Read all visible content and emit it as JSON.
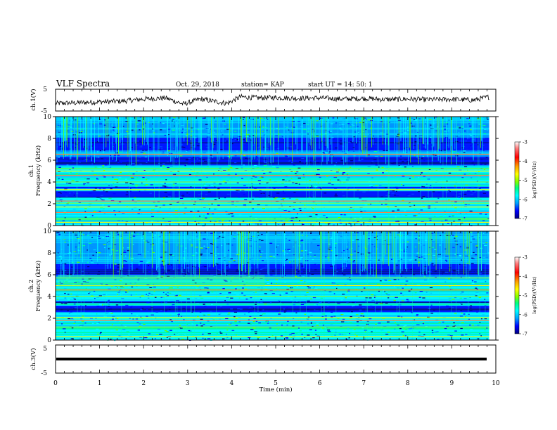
{
  "header": {
    "title": "VLF Spectra",
    "date": "Oct. 29, 2018",
    "station": "station= KAP",
    "start": "start  UT =   14: 50: 1"
  },
  "colors": {
    "waveform": "#000000",
    "colormap": [
      "#00008f",
      "#0000ff",
      "#00a0ff",
      "#00ffff",
      "#00ff80",
      "#80ff00",
      "#ffff00",
      "#ff8000",
      "#ff0000",
      "#ffffff"
    ]
  },
  "chart_data": [
    {
      "type": "line",
      "panel": "ch1-waveform",
      "ylabel": "ch.1(V)",
      "ylim": [
        -5,
        5
      ],
      "yticks": [
        "5",
        "-5"
      ],
      "x_range": [
        0,
        9.85
      ],
      "description_values": {
        "x": [
          0,
          0.5,
          1.0,
          1.5,
          2.0,
          2.5,
          2.9,
          3.3,
          3.6,
          3.9,
          4.2,
          4.6,
          5.0,
          5.5,
          6.0,
          6.5,
          7.0,
          7.5,
          8.0,
          8.5,
          9.0,
          9.5,
          9.85
        ],
        "y": [
          -1.5,
          -1.2,
          -0.8,
          -0.5,
          0.5,
          1.0,
          -1.8,
          0.5,
          -0.5,
          -1.5,
          1.5,
          1.0,
          1.2,
          0.8,
          1.0,
          0.5,
          0.8,
          0.3,
          0.5,
          0.2,
          0.4,
          0.0,
          1.5
        ]
      }
    },
    {
      "type": "heatmap",
      "panel": "ch1-spectrogram",
      "ylabel": "ch.1\nFrequency (kHz)",
      "ylim": [
        0,
        10
      ],
      "yticks": [
        "0",
        "2",
        "4",
        "6",
        "8",
        "10"
      ],
      "colorbar": {
        "label": "log(PSD)(V²/Hz)",
        "range": [
          -7,
          -3
        ],
        "ticks": [
          "-3",
          "-4",
          "-5",
          "-6",
          "-7"
        ]
      },
      "dark_bands_khz": [
        [
          2.6,
          3.2
        ],
        [
          3.4,
          3.6
        ],
        [
          5.6,
          6.3
        ],
        [
          6.9,
          8.1
        ]
      ],
      "bright_lines_khz": [
        0.3,
        0.6,
        1.2,
        1.7,
        2.05,
        2.25,
        3.3,
        4.0,
        4.6,
        5.0,
        5.2,
        6.55
      ]
    },
    {
      "type": "heatmap",
      "panel": "ch2-spectrogram",
      "ylabel": "ch.2\nFrequency (kHz)",
      "ylim": [
        0,
        10
      ],
      "yticks": [
        "0",
        "2",
        "4",
        "6",
        "8",
        "10"
      ],
      "colorbar": {
        "label": "log(PSD)(V²/Hz)",
        "range": [
          -7,
          -3
        ],
        "ticks": [
          "-3",
          "-4",
          "-5",
          "-6",
          "-7"
        ]
      },
      "dark_bands_khz": [
        [
          2.6,
          3.2
        ],
        [
          3.4,
          3.6
        ],
        [
          6.0,
          7.0
        ]
      ],
      "bright_lines_khz": [
        0.3,
        1.2,
        1.8,
        2.05,
        4.0,
        4.6,
        5.0,
        5.7
      ]
    },
    {
      "type": "line",
      "panel": "ch3-waveform",
      "ylabel": "ch.3(V)",
      "ylim": [
        -5,
        5
      ],
      "yticks": [
        "5",
        "-5"
      ],
      "x": [
        0,
        9.85
      ],
      "y": [
        0,
        0
      ]
    }
  ],
  "xaxis": {
    "label": "Time (min)",
    "range": [
      0,
      10
    ],
    "ticks": [
      "0",
      "1",
      "2",
      "3",
      "4",
      "5",
      "6",
      "7",
      "8",
      "9",
      "10"
    ]
  }
}
